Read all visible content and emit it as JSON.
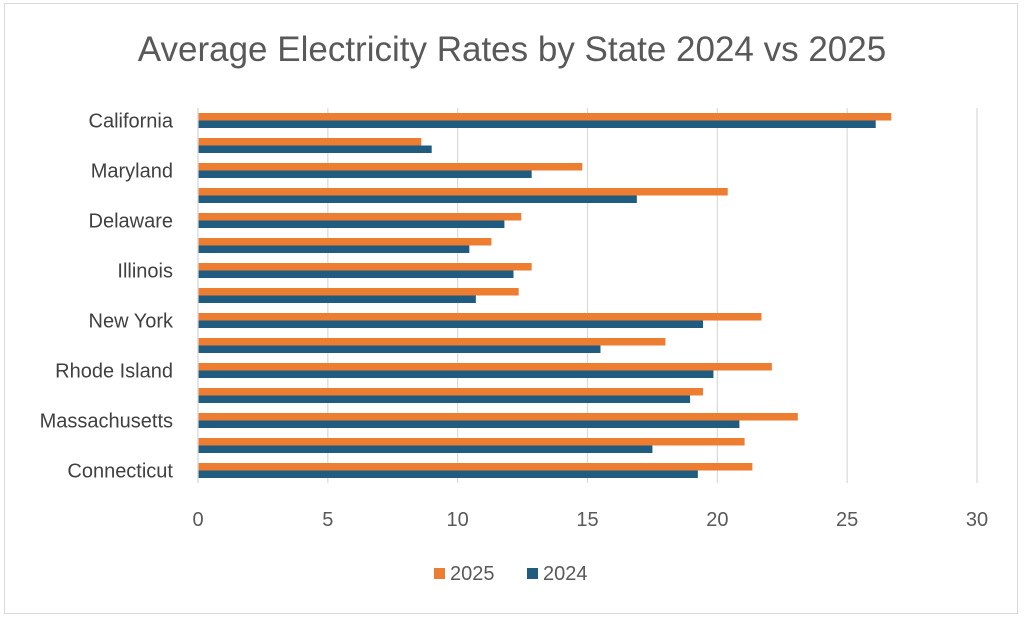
{
  "chart_data": {
    "type": "bar",
    "orientation": "horizontal",
    "title": "Average Electricity Rates by State 2024 vs 2025",
    "xlabel": "",
    "ylabel": "",
    "xlim": [
      0,
      30
    ],
    "x_ticks": [
      "0",
      "5",
      "10",
      "15",
      "20",
      "25",
      "30"
    ],
    "grid": "vertical",
    "legend_position": "bottom",
    "category_labels_shown": [
      "California",
      "",
      "Maryland",
      "",
      "Delaware",
      "",
      "Illinois",
      "",
      "New York",
      "",
      "Rhode Island",
      "",
      "Massachusetts",
      "",
      "Connecticut"
    ],
    "series": [
      {
        "name": "2025",
        "color": "#ED7D31",
        "values": [
          26.7,
          8.6,
          14.8,
          20.4,
          12.45,
          11.3,
          12.85,
          12.35,
          21.7,
          18.0,
          22.1,
          19.45,
          23.1,
          21.05,
          21.35
        ]
      },
      {
        "name": "2024",
        "color": "#1F5C7F",
        "values": [
          26.1,
          9.0,
          12.85,
          16.9,
          11.8,
          10.45,
          12.15,
          10.7,
          19.45,
          15.5,
          19.85,
          18.95,
          20.85,
          17.5,
          19.25
        ]
      }
    ],
    "legend": [
      {
        "label": "2025",
        "color": "#ED7D31"
      },
      {
        "label": "2024",
        "color": "#1F5C7F"
      }
    ]
  }
}
